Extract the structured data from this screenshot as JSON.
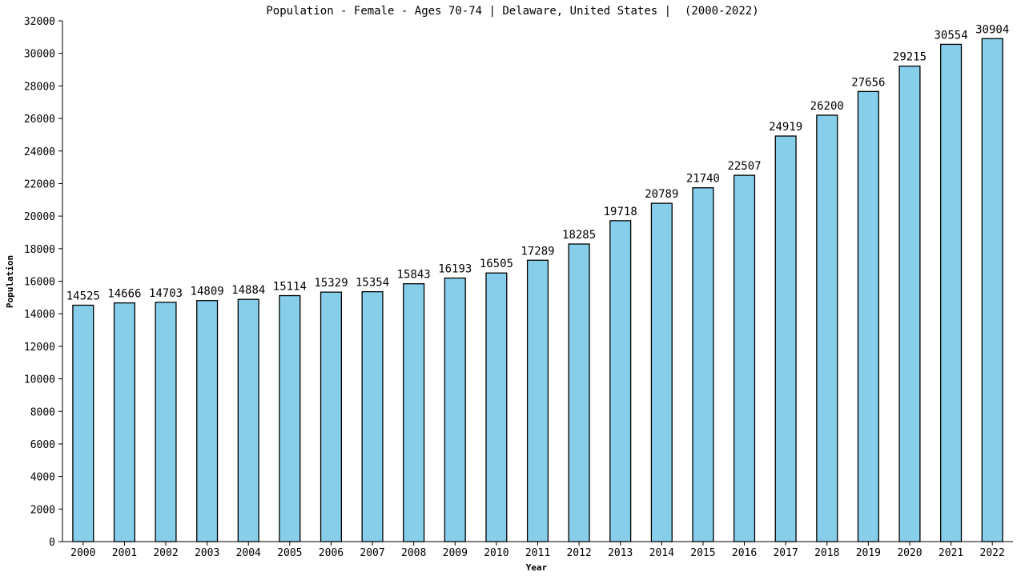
{
  "chart_data": {
    "type": "bar",
    "title": "Population - Female - Ages 70-74 | Delaware, United States |  (2000-2022)",
    "xlabel": "Year",
    "ylabel": "Population",
    "ylim": [
      0,
      32000
    ],
    "ytick_step": 2000,
    "grid": false,
    "legend": "none",
    "bar_color": "#87ceeb",
    "categories": [
      "2000",
      "2001",
      "2002",
      "2003",
      "2004",
      "2005",
      "2006",
      "2007",
      "2008",
      "2009",
      "2010",
      "2011",
      "2012",
      "2013",
      "2014",
      "2015",
      "2016",
      "2017",
      "2018",
      "2019",
      "2020",
      "2021",
      "2022"
    ],
    "values": [
      14525,
      14666,
      14703,
      14809,
      14884,
      15114,
      15329,
      15354,
      15843,
      16193,
      16505,
      17289,
      18285,
      19718,
      20789,
      21740,
      22507,
      24919,
      26200,
      27656,
      29215,
      30554,
      30904
    ]
  }
}
